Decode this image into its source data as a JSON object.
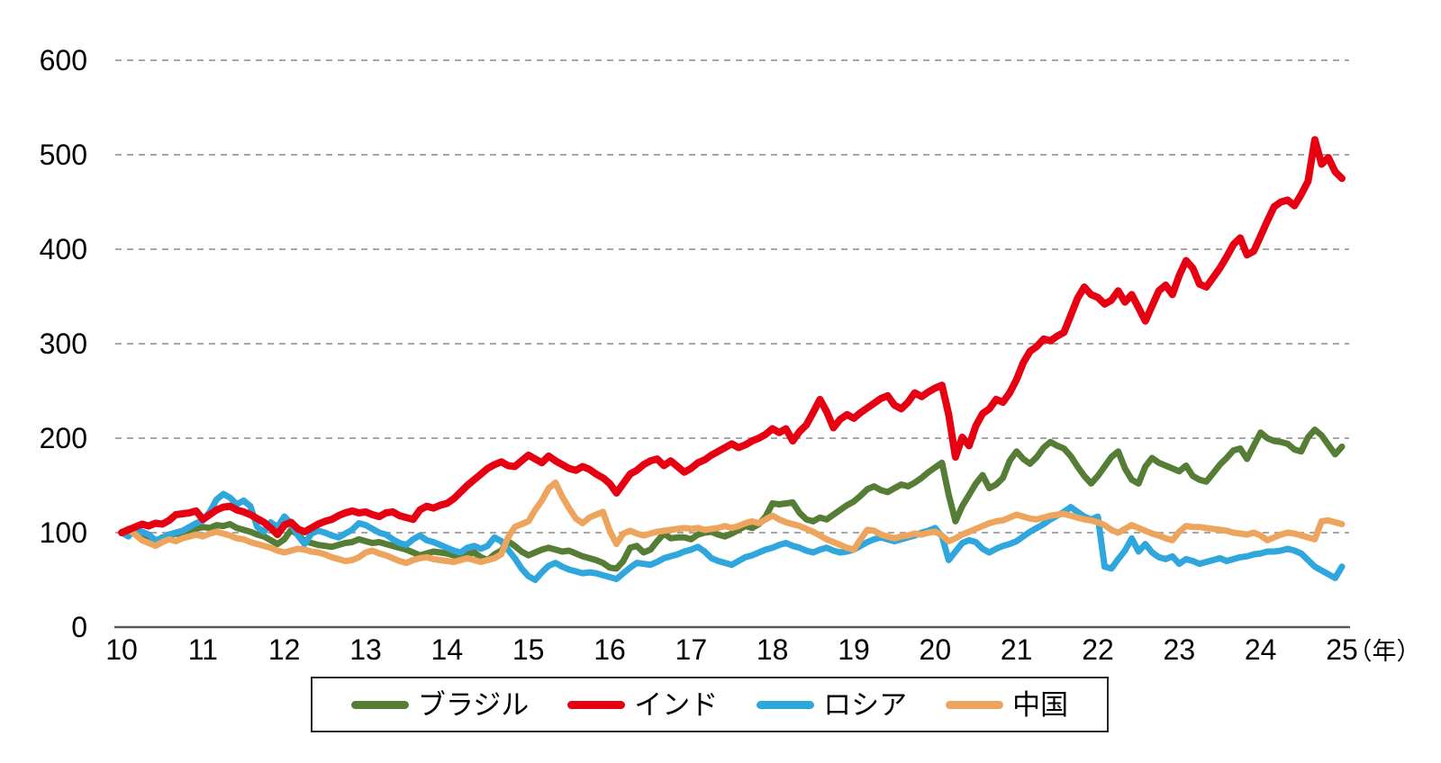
{
  "chart_data": {
    "type": "line",
    "title": "",
    "x_axis": {
      "unit": "（年）",
      "ticks": [
        "10",
        "11",
        "12",
        "13",
        "14",
        "15",
        "16",
        "17",
        "18",
        "19",
        "20",
        "21",
        "22",
        "23",
        "24",
        "25"
      ],
      "tick_values": [
        10,
        11,
        12,
        13,
        14,
        15,
        16,
        17,
        18,
        19,
        20,
        21,
        22,
        23,
        24,
        25
      ],
      "range": [
        10,
        25
      ]
    },
    "y_axis": {
      "ticks": [
        "0",
        "100",
        "200",
        "300",
        "400",
        "500",
        "600"
      ],
      "tick_values": [
        0,
        100,
        200,
        300,
        400,
        500,
        600
      ],
      "range": [
        0,
        600
      ],
      "gridlines": "dashed-horizontal"
    },
    "legend_position": "bottom",
    "x_start": 10,
    "x_step": 0.083333,
    "series": [
      {
        "name": "ブラジル",
        "color": "#557d35",
        "values": [
          100,
          104,
          99,
          96,
          93,
          91,
          95,
          97,
          99,
          98,
          101,
          104,
          106,
          105,
          108,
          107,
          109,
          105,
          103,
          101,
          98,
          96,
          92,
          88,
          93,
          103,
          98,
          91,
          89,
          87,
          86,
          85,
          87,
          89,
          90,
          93,
          91,
          89,
          90,
          88,
          86,
          84,
          82,
          79,
          76,
          78,
          80,
          79,
          78,
          76,
          74,
          77,
          79,
          74,
          71,
          77,
          81,
          91,
          86,
          80,
          76,
          79,
          82,
          84,
          82,
          80,
          81,
          78,
          75,
          73,
          71,
          68,
          63,
          62,
          70,
          84,
          86,
          79,
          82,
          91,
          99,
          94,
          95,
          95,
          93,
          98,
          100,
          101,
          98,
          96,
          99,
          103,
          107,
          105,
          109,
          117,
          131,
          130,
          131,
          132,
          121,
          114,
          112,
          116,
          114,
          119,
          124,
          129,
          133,
          139,
          146,
          149,
          145,
          143,
          147,
          151,
          149,
          153,
          158,
          164,
          169,
          174,
          140,
          112,
          128,
          140,
          152,
          161,
          147,
          151,
          158,
          176,
          186,
          178,
          173,
          180,
          190,
          196,
          192,
          189,
          181,
          170,
          160,
          152,
          160,
          170,
          180,
          186,
          168,
          156,
          152,
          170,
          179,
          174,
          171,
          168,
          165,
          171,
          160,
          156,
          154,
          163,
          172,
          179,
          187,
          189,
          178,
          192,
          206,
          200,
          197,
          196,
          194,
          188,
          186,
          201,
          209,
          203,
          193,
          183,
          191
        ]
      },
      {
        "name": "インド",
        "color": "#e60012",
        "values": [
          100,
          103,
          106,
          109,
          107,
          110,
          109,
          113,
          119,
          120,
          121,
          123,
          114,
          119,
          124,
          127,
          128,
          124,
          122,
          119,
          115,
          111,
          105,
          98,
          108,
          111,
          104,
          101,
          105,
          109,
          112,
          114,
          118,
          121,
          123,
          121,
          122,
          119,
          117,
          121,
          122,
          118,
          116,
          114,
          124,
          128,
          126,
          129,
          131,
          136,
          143,
          150,
          156,
          162,
          168,
          172,
          175,
          171,
          170,
          176,
          182,
          178,
          174,
          181,
          176,
          172,
          168,
          166,
          170,
          167,
          162,
          158,
          152,
          142,
          152,
          162,
          166,
          172,
          176,
          178,
          171,
          176,
          170,
          164,
          168,
          174,
          177,
          182,
          186,
          190,
          194,
          190,
          193,
          197,
          200,
          204,
          210,
          206,
          210,
          197,
          207,
          214,
          227,
          241,
          228,
          211,
          220,
          225,
          221,
          227,
          232,
          237,
          242,
          245,
          235,
          231,
          238,
          248,
          244,
          249,
          253,
          256,
          225,
          180,
          201,
          192,
          213,
          226,
          231,
          241,
          238,
          248,
          262,
          280,
          292,
          297,
          305,
          303,
          308,
          312,
          330,
          348,
          360,
          352,
          349,
          342,
          346,
          356,
          344,
          352,
          338,
          324,
          340,
          356,
          362,
          352,
          372,
          388,
          380,
          363,
          360,
          370,
          380,
          392,
          405,
          412,
          394,
          398,
          414,
          430,
          445,
          450,
          452,
          446,
          458,
          472,
          516,
          490,
          497,
          482,
          475
        ]
      },
      {
        "name": "ロシア",
        "color": "#2fa7dd",
        "values": [
          100,
          96,
          104,
          101,
          98,
          92,
          94,
          98,
          100,
          102,
          106,
          110,
          113,
          122,
          135,
          141,
          137,
          130,
          134,
          128,
          106,
          101,
          111,
          106,
          117,
          110,
          97,
          88,
          99,
          102,
          100,
          97,
          95,
          99,
          103,
          110,
          108,
          104,
          100,
          98,
          93,
          89,
          87,
          93,
          97,
          92,
          90,
          87,
          84,
          81,
          79,
          84,
          86,
          83,
          86,
          95,
          91,
          82,
          73,
          62,
          54,
          50,
          58,
          65,
          68,
          64,
          61,
          59,
          57,
          58,
          57,
          55,
          53,
          51,
          57,
          63,
          68,
          67,
          66,
          69,
          73,
          75,
          77,
          80,
          82,
          85,
          80,
          73,
          70,
          68,
          66,
          70,
          74,
          76,
          79,
          82,
          84,
          87,
          89,
          86,
          84,
          81,
          79,
          82,
          84,
          81,
          79,
          80,
          82,
          86,
          90,
          93,
          95,
          93,
          91,
          93,
          95,
          97,
          100,
          102,
          105,
          96,
          71,
          80,
          89,
          92,
          90,
          83,
          79,
          83,
          86,
          88,
          91,
          96,
          101,
          105,
          109,
          114,
          118,
          122,
          127,
          122,
          117,
          114,
          117,
          64,
          62,
          72,
          81,
          94,
          80,
          88,
          79,
          74,
          72,
          75,
          67,
          72,
          70,
          67,
          69,
          71,
          73,
          70,
          72,
          74,
          75,
          77,
          78,
          80,
          80,
          81,
          83,
          81,
          78,
          71,
          64,
          60,
          56,
          52,
          64
        ]
      },
      {
        "name": "中国",
        "color": "#eda55e",
        "values": [
          100,
          104,
          98,
          92,
          89,
          86,
          90,
          93,
          91,
          94,
          96,
          98,
          96,
          99,
          101,
          99,
          97,
          94,
          93,
          90,
          88,
          86,
          84,
          81,
          79,
          81,
          83,
          82,
          80,
          79,
          77,
          74,
          72,
          70,
          71,
          74,
          79,
          81,
          78,
          76,
          73,
          70,
          68,
          71,
          73,
          74,
          72,
          71,
          70,
          69,
          71,
          73,
          71,
          69,
          71,
          73,
          77,
          95,
          106,
          109,
          112,
          124,
          134,
          147,
          153,
          138,
          126,
          115,
          110,
          116,
          119,
          122,
          102,
          88,
          99,
          102,
          99,
          97,
          99,
          101,
          102,
          103,
          104,
          105,
          104,
          105,
          103,
          104,
          105,
          107,
          105,
          107,
          110,
          112,
          110,
          114,
          118,
          114,
          111,
          109,
          107,
          104,
          101,
          97,
          93,
          90,
          87,
          84,
          82,
          93,
          103,
          102,
          98,
          96,
          94,
          96,
          97,
          99,
          98,
          100,
          101,
          97,
          91,
          94,
          98,
          101,
          104,
          107,
          110,
          112,
          113,
          116,
          119,
          117,
          115,
          114,
          116,
          118,
          119,
          120,
          118,
          116,
          114,
          113,
          111,
          108,
          103,
          100,
          104,
          108,
          105,
          102,
          99,
          97,
          94,
          92,
          101,
          107,
          106,
          106,
          105,
          104,
          103,
          102,
          100,
          99,
          98,
          100,
          97,
          92,
          95,
          98,
          100,
          99,
          97,
          95,
          93,
          112,
          113,
          111,
          109
        ]
      }
    ],
    "legend_labels": [
      "ブラジル",
      "インド",
      "ロシア",
      "中国"
    ]
  },
  "style": {
    "gridline_color": "#a6a6a6",
    "axis_line_color": "#595959",
    "background": "#ffffff"
  }
}
